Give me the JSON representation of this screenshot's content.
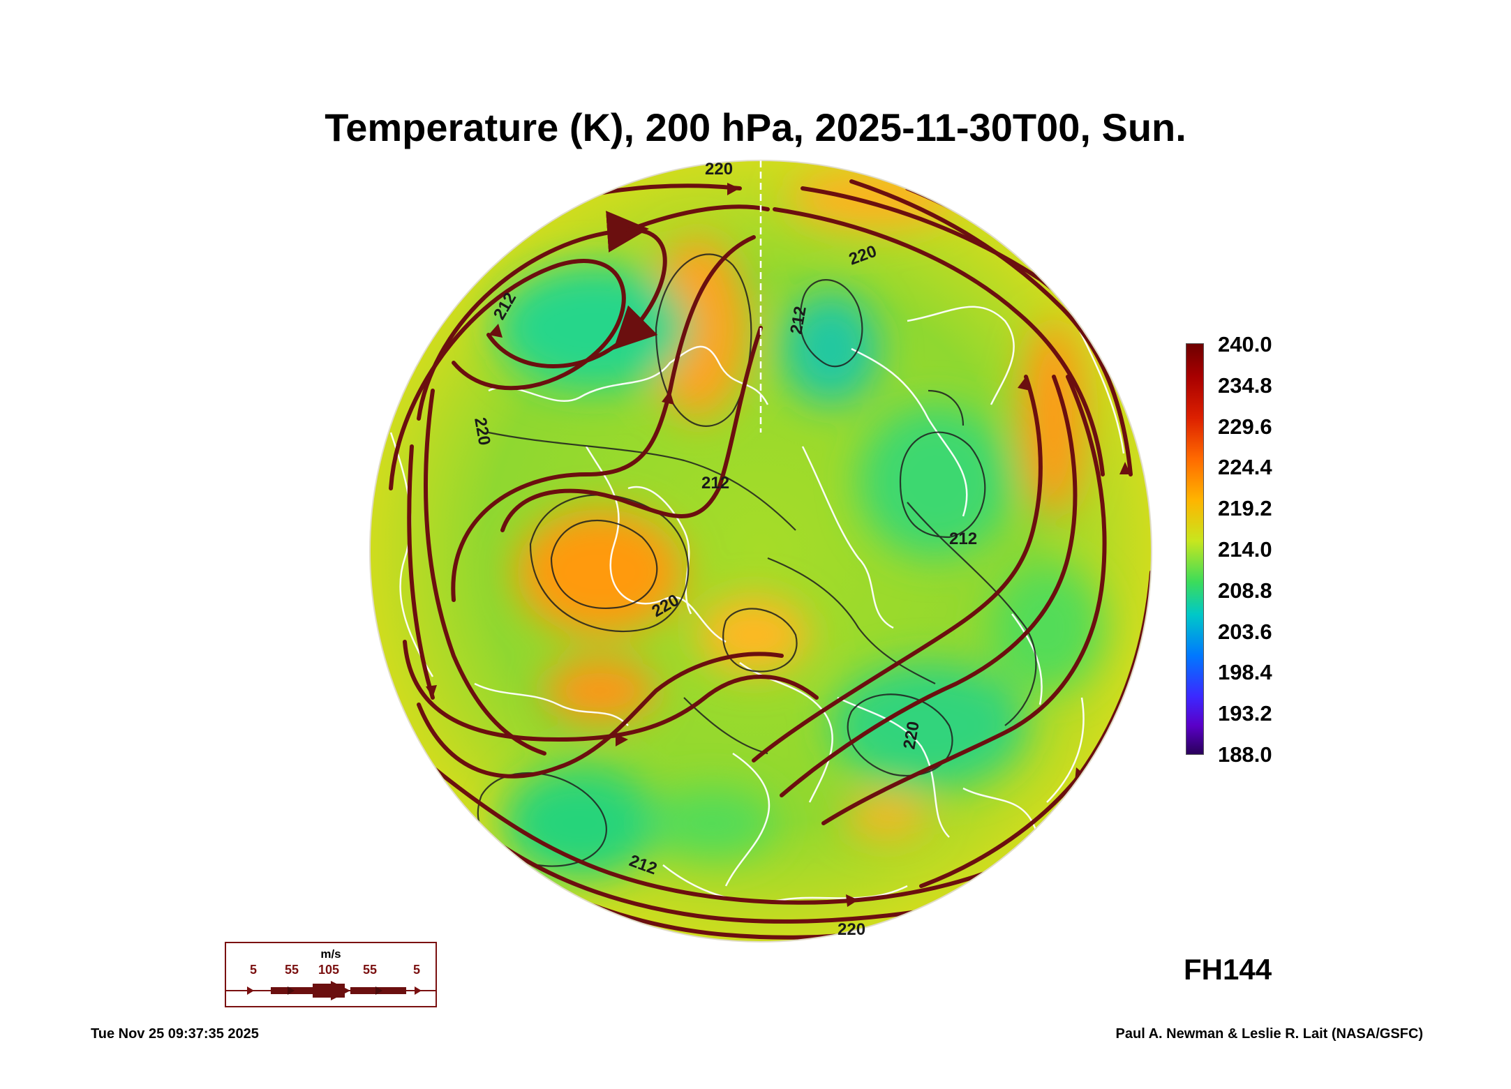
{
  "title": "Temperature (K), 200 hPa, 2025-11-30T00, Sun.",
  "colorbar": {
    "ticks": [
      "240.0",
      "234.8",
      "229.6",
      "224.4",
      "219.2",
      "214.0",
      "208.8",
      "203.6",
      "198.4",
      "193.2",
      "188.0"
    ],
    "min": 188.0,
    "max": 240.0
  },
  "contour_labels": [
    "220",
    "212",
    "220",
    "212",
    "220",
    "212",
    "220",
    "212",
    "220",
    "212",
    "220"
  ],
  "wind_legend": {
    "unit": "m/s",
    "speeds": [
      "5",
      "55",
      "105",
      "55",
      "5"
    ]
  },
  "forecast_hour": "FH144",
  "footer": {
    "timestamp": "Tue Nov 25 09:37:35 2025",
    "credit": "Paul A. Newman & Leslie R. Lait (NASA/GSFC)"
  },
  "colors": {
    "streamline": "#6b0f0f",
    "coastline": "#ffffff",
    "contour": "#1e1e1e"
  }
}
